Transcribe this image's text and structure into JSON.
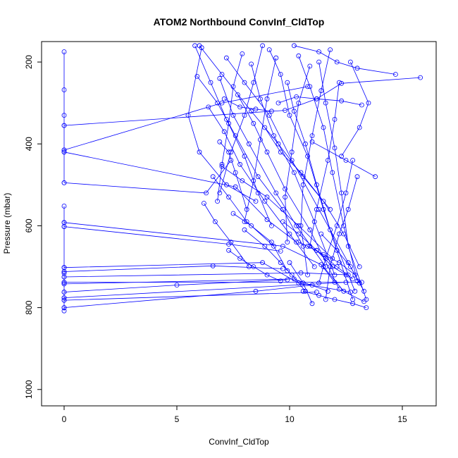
{
  "chart_data": {
    "type": "line",
    "title": "ATOM2 Northbound ConvInf_CldTop",
    "xlabel": "ConvInf_CldTop",
    "ylabel": "Pressure (mbar)",
    "xlim": [
      -1,
      16.5
    ],
    "ylim": [
      1040,
      150
    ],
    "y_reversed": true,
    "grid": false,
    "series_color": "#0000ff",
    "marker": "open-circle",
    "x_ticks": [
      0,
      5,
      10,
      15
    ],
    "x_tick_labels": [
      "0",
      "5",
      "10",
      "15"
    ],
    "y_ticks": [
      200,
      400,
      600,
      800,
      1000
    ],
    "y_tick_labels": [
      "200",
      "400",
      "600",
      "800",
      "1000"
    ],
    "series": [
      {
        "x": [
          0,
          0,
          0,
          0,
          0,
          0,
          0
        ],
        "y": [
          175,
          268,
          330,
          355,
          415,
          420,
          495
        ]
      },
      {
        "x": [
          0,
          0,
          0,
          0,
          0,
          0,
          0,
          0,
          0,
          0,
          0,
          0,
          0,
          0
        ],
        "y": [
          552,
          592,
          602,
          702,
          712,
          716,
          725,
          738,
          742,
          762,
          776,
          782,
          800,
          808
        ]
      },
      {
        "x": [
          0,
          9.8,
          11.2,
          12.3,
          15.8
        ],
        "y": [
          355,
          318,
          290,
          252,
          238
        ]
      },
      {
        "x": [
          0,
          7.6,
          9.0,
          10.3
        ],
        "y": [
          420,
          505,
          585,
          640
        ]
      },
      {
        "x": [
          0,
          6.3,
          7.4
        ],
        "y": [
          495,
          520,
          440
        ]
      },
      {
        "x": [
          0,
          9.7,
          11.4,
          12.0
        ],
        "y": [
          592,
          650,
          695,
          738
        ]
      },
      {
        "x": [
          0,
          7.3,
          9.6
        ],
        "y": [
          602,
          645,
          662
        ]
      },
      {
        "x": [
          0,
          8.8,
          10.4,
          12.7
        ],
        "y": [
          702,
          690,
          740,
          762
        ]
      },
      {
        "x": [
          0,
          13.2
        ],
        "y": [
          738,
          738
        ]
      },
      {
        "x": [
          0,
          10.2,
          11.7
        ],
        "y": [
          742,
          730,
          760
        ]
      },
      {
        "x": [
          0,
          5.0,
          9.9
        ],
        "y": [
          762,
          745,
          732
        ]
      },
      {
        "x": [
          0,
          11.2
        ],
        "y": [
          782,
          762
        ]
      },
      {
        "x": [
          0,
          6.6,
          9.7
        ],
        "y": [
          712,
          698,
          705
        ]
      },
      {
        "x": [
          0,
          10.5,
          12.6
        ],
        "y": [
          725,
          715,
          720
        ]
      },
      {
        "x": [
          0,
          12.5
        ],
        "y": [
          776,
          738
        ]
      },
      {
        "x": [
          0,
          8.5,
          11.0
        ],
        "y": [
          800,
          760,
          745
        ]
      },
      {
        "x": [
          0,
          7.0,
          10.8
        ],
        "y": [
          415,
          300,
          260
        ]
      },
      {
        "x": [
          7.2,
          8.0,
          9.1,
          10.1,
          11.3,
          12.6,
          13.3
        ],
        "y": [
          190,
          250,
          330,
          440,
          560,
          690,
          760
        ]
      },
      {
        "x": [
          6.9,
          7.5,
          8.2,
          9.4,
          10.3,
          11.6
        ],
        "y": [
          240,
          330,
          400,
          520,
          600,
          700
        ]
      },
      {
        "x": [
          8.3,
          8.7,
          9.3,
          10.2,
          11.1,
          12.0
        ],
        "y": [
          205,
          290,
          380,
          470,
          590,
          720
        ]
      },
      {
        "x": [
          9.1,
          9.6,
          10.0,
          10.8,
          11.5,
          12.8
        ],
        "y": [
          170,
          230,
          330,
          430,
          560,
          780
        ]
      },
      {
        "x": [
          10.4,
          10.9,
          11.5,
          11.9,
          12.4,
          13.0
        ],
        "y": [
          185,
          260,
          360,
          470,
          600,
          735
        ]
      },
      {
        "x": [
          11.3,
          11.6,
          12.0,
          12.3,
          12.6,
          13.4
        ],
        "y": [
          200,
          300,
          410,
          520,
          650,
          780
        ]
      },
      {
        "x": [
          6.4,
          7.1,
          7.8,
          8.9,
          10.0,
          11.1
        ],
        "y": [
          310,
          370,
          450,
          540,
          620,
          700
        ]
      },
      {
        "x": [
          7.7,
          8.4,
          9.0,
          9.8,
          10.9,
          12.2
        ],
        "y": [
          280,
          350,
          420,
          510,
          610,
          755
        ]
      },
      {
        "x": [
          5.9,
          6.8,
          7.6,
          8.6,
          9.7,
          10.6
        ],
        "y": [
          235,
          300,
          380,
          480,
          560,
          650
        ]
      },
      {
        "x": [
          9.9,
          10.2,
          10.7,
          11.2,
          11.8,
          12.9
        ],
        "y": [
          250,
          320,
          400,
          500,
          610,
          760
        ]
      },
      {
        "x": [
          12.2,
          12.0,
          11.7,
          11.2,
          10.9
        ],
        "y": [
          250,
          340,
          440,
          560,
          650
        ]
      },
      {
        "x": [
          11.8,
          11.4,
          11.0,
          10.6,
          10.5,
          10.8
        ],
        "y": [
          170,
          270,
          380,
          500,
          600,
          720
        ]
      },
      {
        "x": [
          10.9,
          10.4,
          10.1,
          9.8,
          9.9
        ],
        "y": [
          210,
          300,
          420,
          530,
          640
        ]
      },
      {
        "x": [
          8.9,
          9.6,
          10.5,
          11.5,
          12.4,
          13.1
        ],
        "y": [
          360,
          420,
          470,
          540,
          620,
          700
        ]
      },
      {
        "x": [
          7.0,
          7.9,
          9.0,
          10.4,
          11.9
        ],
        "y": [
          455,
          490,
          530,
          600,
          680
        ]
      },
      {
        "x": [
          6.6,
          7.3,
          8.1,
          9.3
        ],
        "y": [
          480,
          530,
          590,
          650
        ]
      },
      {
        "x": [
          11.0,
          12.5,
          13.8
        ],
        "y": [
          395,
          440,
          480
        ]
      },
      {
        "x": [
          12.3,
          13.1,
          13.5,
          12.7
        ],
        "y": [
          430,
          360,
          300,
          200
        ]
      },
      {
        "x": [
          10.2,
          11.3,
          12.1,
          13.0,
          14.7
        ],
        "y": [
          160,
          175,
          200,
          215,
          230
        ]
      },
      {
        "x": [
          9.5,
          10.3,
          11.2,
          12.3,
          13.2
        ],
        "y": [
          300,
          285,
          290,
          295,
          305
        ]
      },
      {
        "x": [
          6.2,
          6.7,
          7.4,
          8.2
        ],
        "y": [
          545,
          590,
          640,
          700
        ]
      },
      {
        "x": [
          7.5,
          8.3,
          9.2,
          9.9
        ],
        "y": [
          570,
          600,
          640,
          710
        ]
      },
      {
        "x": [
          8.0,
          8.9,
          9.6,
          10.1,
          10.7
        ],
        "y": [
          610,
          650,
          690,
          720,
          760
        ]
      },
      {
        "x": [
          10.4,
          11.2,
          11.9,
          12.5
        ],
        "y": [
          640,
          660,
          700,
          720
        ]
      },
      {
        "x": [
          11.4,
          12.1,
          12.7,
          13.1
        ],
        "y": [
          620,
          660,
          700,
          740
        ]
      },
      {
        "x": [
          11.5,
          12.4,
          13.3
        ],
        "y": [
          700,
          760,
          785
        ]
      },
      {
        "x": [
          10.6,
          11.3,
          12.0,
          12.8,
          13.4
        ],
        "y": [
          760,
          770,
          780,
          790,
          800
        ]
      },
      {
        "x": [
          10.0,
          10.6,
          11.0
        ],
        "y": [
          690,
          740,
          790
        ]
      },
      {
        "x": [
          6.1,
          5.5,
          6.0,
          7.2,
          8.5
        ],
        "y": [
          165,
          330,
          420,
          500,
          540
        ]
      },
      {
        "x": [
          7.9,
          7.5,
          7.3,
          7.0,
          6.8
        ],
        "y": [
          180,
          260,
          350,
          450,
          540
        ]
      },
      {
        "x": [
          8.8,
          8.4,
          8.0,
          7.4,
          6.9
        ],
        "y": [
          160,
          250,
          330,
          420,
          520
        ]
      },
      {
        "x": [
          9.4,
          9.0,
          8.7,
          8.4,
          8.0
        ],
        "y": [
          190,
          290,
          390,
          490,
          590
        ]
      },
      {
        "x": [
          6.0,
          7.0,
          8.3,
          9.5,
          10.6,
          11.8
        ],
        "y": [
          160,
          230,
          320,
          400,
          480,
          560
        ]
      },
      {
        "x": [
          5.8,
          6.5,
          7.2,
          8.0,
          8.6,
          9.2
        ],
        "y": [
          160,
          250,
          340,
          430,
          520,
          600
        ]
      },
      {
        "x": [
          12.8,
          12.5,
          12.1,
          11.6,
          11.3
        ],
        "y": [
          440,
          520,
          600,
          680,
          740
        ]
      },
      {
        "x": [
          13.0,
          12.6,
          12.2,
          11.8,
          11.6
        ],
        "y": [
          480,
          560,
          620,
          700,
          780
        ]
      },
      {
        "x": [
          10.8,
          11.5,
          12.2,
          12.9
        ],
        "y": [
          650,
          670,
          690,
          720
        ]
      },
      {
        "x": [
          9.7,
          10.4,
          11.2,
          12.1,
          12.8
        ],
        "y": [
          590,
          620,
          660,
          700,
          730
        ]
      },
      {
        "x": [
          7.1,
          7.8,
          8.5,
          9.2
        ],
        "y": [
          290,
          310,
          315,
          320
        ]
      },
      {
        "x": [
          6.9,
          7.3,
          7.6,
          8.1
        ],
        "y": [
          395,
          420,
          470,
          560
        ]
      },
      {
        "x": [
          7.3,
          7.8,
          8.4,
          9.0,
          9.6
        ],
        "y": [
          660,
          680,
          700,
          720,
          735
        ]
      }
    ]
  }
}
